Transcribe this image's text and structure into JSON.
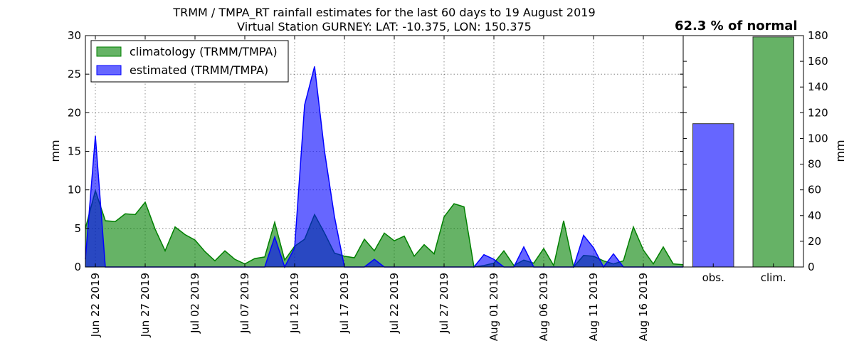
{
  "chart_data": {
    "type": "area",
    "title": "TRMM / TMPA_RT rainfall estimates for the last 60 days to 19 August 2019",
    "subtitle": "Virtual Station GURNEY: LAT: -10.375, LON: 150.375",
    "ylabel": "mm",
    "ylim": [
      0,
      30
    ],
    "yticks": [
      0,
      5,
      10,
      15,
      20,
      25,
      30
    ],
    "grid": true,
    "legend_position": "top-left",
    "start_date": "Jun 21 2019",
    "x_tick_labels": [
      "Jun 22 2019",
      "Jun 27 2019",
      "Jul 02 2019",
      "Jul 07 2019",
      "Jul 12 2019",
      "Jul 17 2019",
      "Jul 22 2019",
      "Jul 27 2019",
      "Aug 01 2019",
      "Aug 06 2019",
      "Aug 11 2019",
      "Aug 16 2019"
    ],
    "series": [
      {
        "name": "climatology (TRMM/TMPA)",
        "color": "#008000",
        "values": [
          5.0,
          9.9,
          6.0,
          5.9,
          6.9,
          6.8,
          8.4,
          4.9,
          2.1,
          5.2,
          4.2,
          3.5,
          2.0,
          0.8,
          2.1,
          1.0,
          0.4,
          1.1,
          1.3,
          5.8,
          0.9,
          2.7,
          3.6,
          6.8,
          4.4,
          1.8,
          1.4,
          1.2,
          3.6,
          2.1,
          4.4,
          3.4,
          4.0,
          1.4,
          2.9,
          1.7,
          6.5,
          8.2,
          7.8,
          0.0,
          0.2,
          0.5,
          2.1,
          0.2,
          0.9,
          0.5,
          2.4,
          0.2,
          6.0,
          0.0,
          1.5,
          1.4,
          0.8,
          0.4,
          0.8,
          5.2,
          2.2,
          0.4,
          2.6,
          0.4,
          0.3
        ]
      },
      {
        "name": "estimated (TRMM/TMPA)",
        "color": "#0000ff",
        "values": [
          1.0,
          17.0,
          0.0,
          0.0,
          0.0,
          0.0,
          0.0,
          0.0,
          0.0,
          0.0,
          0.0,
          0.0,
          0.0,
          0.0,
          0.0,
          0.0,
          0.0,
          0.0,
          0.0,
          3.9,
          0.0,
          2.5,
          21.0,
          26.0,
          15.0,
          6.5,
          0.0,
          0.0,
          0.0,
          1.0,
          0.0,
          0.0,
          0.0,
          0.0,
          0.0,
          0.0,
          0.0,
          0.0,
          0.0,
          0.0,
          1.6,
          1.0,
          0.0,
          0.0,
          2.6,
          0.0,
          0.0,
          0.0,
          0.0,
          0.0,
          4.1,
          2.5,
          0.0,
          1.7,
          0.0,
          0.0,
          0.0,
          0.0,
          0.0,
          0.0,
          0.0
        ]
      }
    ],
    "summary_bar": {
      "type": "bar",
      "percent_label": "62.3 % of normal",
      "ylabel": "mm",
      "ylim": [
        0,
        180
      ],
      "yticks": [
        0,
        20,
        40,
        60,
        80,
        100,
        120,
        140,
        160,
        180
      ],
      "categories": [
        "obs.",
        "clim."
      ],
      "values": [
        111.5,
        179.0
      ],
      "colors": [
        "#6666ff",
        "#66b266"
      ]
    }
  }
}
